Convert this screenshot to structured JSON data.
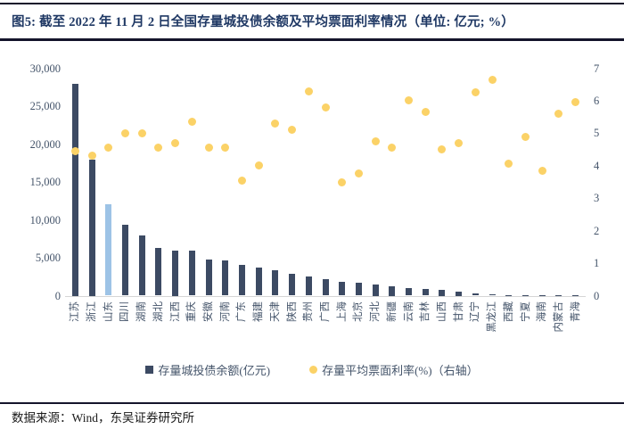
{
  "header": {
    "title": "图5:  截至 2022 年 11 月 2 日全国存量城投债余额及平均票面利率情况（单位: 亿元; %）"
  },
  "chart_data": {
    "type": "bar",
    "subtype": "combo-bar-scatter-dual-axis",
    "categories": [
      "江苏",
      "浙江",
      "山东",
      "四川",
      "湖南",
      "湖北",
      "江西",
      "重庆",
      "安徽",
      "河南",
      "广东",
      "福建",
      "天津",
      "陕西",
      "贵州",
      "广西",
      "上海",
      "北京",
      "河北",
      "新疆",
      "云南",
      "吉林",
      "山西",
      "甘肃",
      "辽宁",
      "黑龙江",
      "西藏",
      "宁夏",
      "海南",
      "内蒙古",
      "青海"
    ],
    "series": [
      {
        "name": "存量城投债余额(亿元)",
        "type": "bar",
        "axis": "left",
        "values": [
          28000,
          18000,
          12100,
          9400,
          7900,
          6350,
          6000,
          5900,
          4800,
          4700,
          4100,
          3700,
          3300,
          2850,
          2550,
          2150,
          1800,
          1700,
          1500,
          1250,
          1050,
          900,
          750,
          500,
          260,
          180,
          110,
          100,
          70,
          50,
          30
        ]
      },
      {
        "name": "存量平均票面利率(%)（右轴）",
        "type": "scatter",
        "axis": "right",
        "values": [
          4.45,
          4.3,
          4.55,
          5.0,
          5.0,
          4.55,
          4.7,
          5.35,
          4.55,
          4.55,
          3.55,
          4.0,
          5.3,
          5.1,
          6.3,
          5.8,
          3.5,
          3.75,
          4.75,
          4.55,
          6.0,
          5.65,
          4.5,
          4.7,
          6.25,
          6.65,
          4.05,
          4.9,
          3.85,
          5.6,
          5.95
        ]
      }
    ],
    "left_axis": {
      "ticks": [
        "30,000",
        "25,000",
        "20,000",
        "15,000",
        "10,000",
        "5,000",
        "0"
      ],
      "tick_values": [
        30000,
        25000,
        20000,
        15000,
        10000,
        5000,
        0
      ],
      "range": [
        0,
        30000
      ]
    },
    "right_axis": {
      "ticks": [
        "7",
        "6",
        "5",
        "4",
        "3",
        "2",
        "1",
        "0"
      ],
      "tick_values": [
        7,
        6,
        5,
        4,
        3,
        2,
        1,
        0
      ],
      "range": [
        0,
        7
      ]
    },
    "highlight_category": "山东",
    "highlight_index": 2,
    "grid": "off",
    "legend_position": "bottom",
    "colors": {
      "bar": "#3c4a63",
      "bar_highlight": "#9dc3e6",
      "dot": "#fbd267",
      "title": "#1f3864",
      "axis_text": "#44546a"
    }
  },
  "legend": {
    "bars_label": "存量城投债余额(亿元)",
    "dots_label": "存量平均票面利率(%)（右轴）"
  },
  "footer": {
    "source": "数据来源：Wind，东吴证券研究所"
  }
}
